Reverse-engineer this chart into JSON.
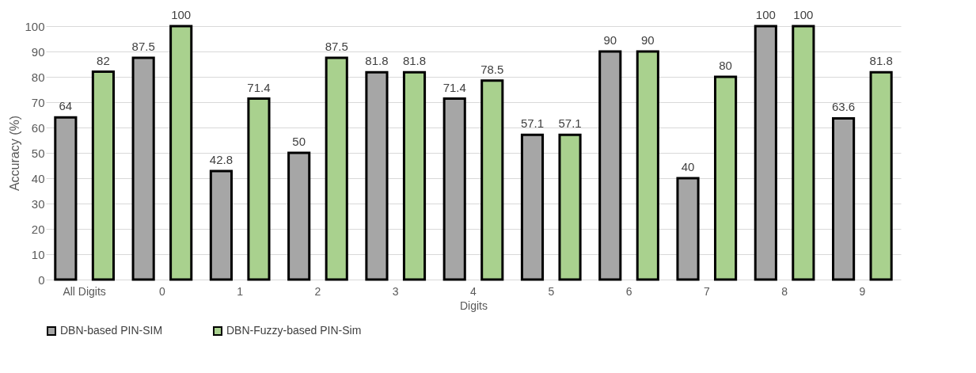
{
  "chart_data": {
    "type": "bar",
    "xlabel": "Digits",
    "ylabel": "Accuracy (%)",
    "categories": [
      "All Digits",
      "0",
      "1",
      "2",
      "3",
      "4",
      "5",
      "6",
      "7",
      "8",
      "9"
    ],
    "series": [
      {
        "name": "DBN-based PIN-SIM",
        "color": "#a6a6a6",
        "values": [
          64,
          87.5,
          42.8,
          50,
          81.8,
          71.4,
          57.1,
          90,
          40,
          100,
          63.6
        ]
      },
      {
        "name": "DBN-Fuzzy-based PIN-Sim",
        "color": "#a9d18e",
        "values": [
          82,
          100,
          71.4,
          87.5,
          81.8,
          78.5,
          57.1,
          90,
          80,
          100,
          81.8
        ]
      }
    ],
    "ylim": [
      0,
      100
    ],
    "yticks": [
      0,
      10,
      20,
      30,
      40,
      50,
      60,
      70,
      80,
      90,
      100
    ],
    "grid": "y",
    "legend": "bottom",
    "data_labels": true
  }
}
